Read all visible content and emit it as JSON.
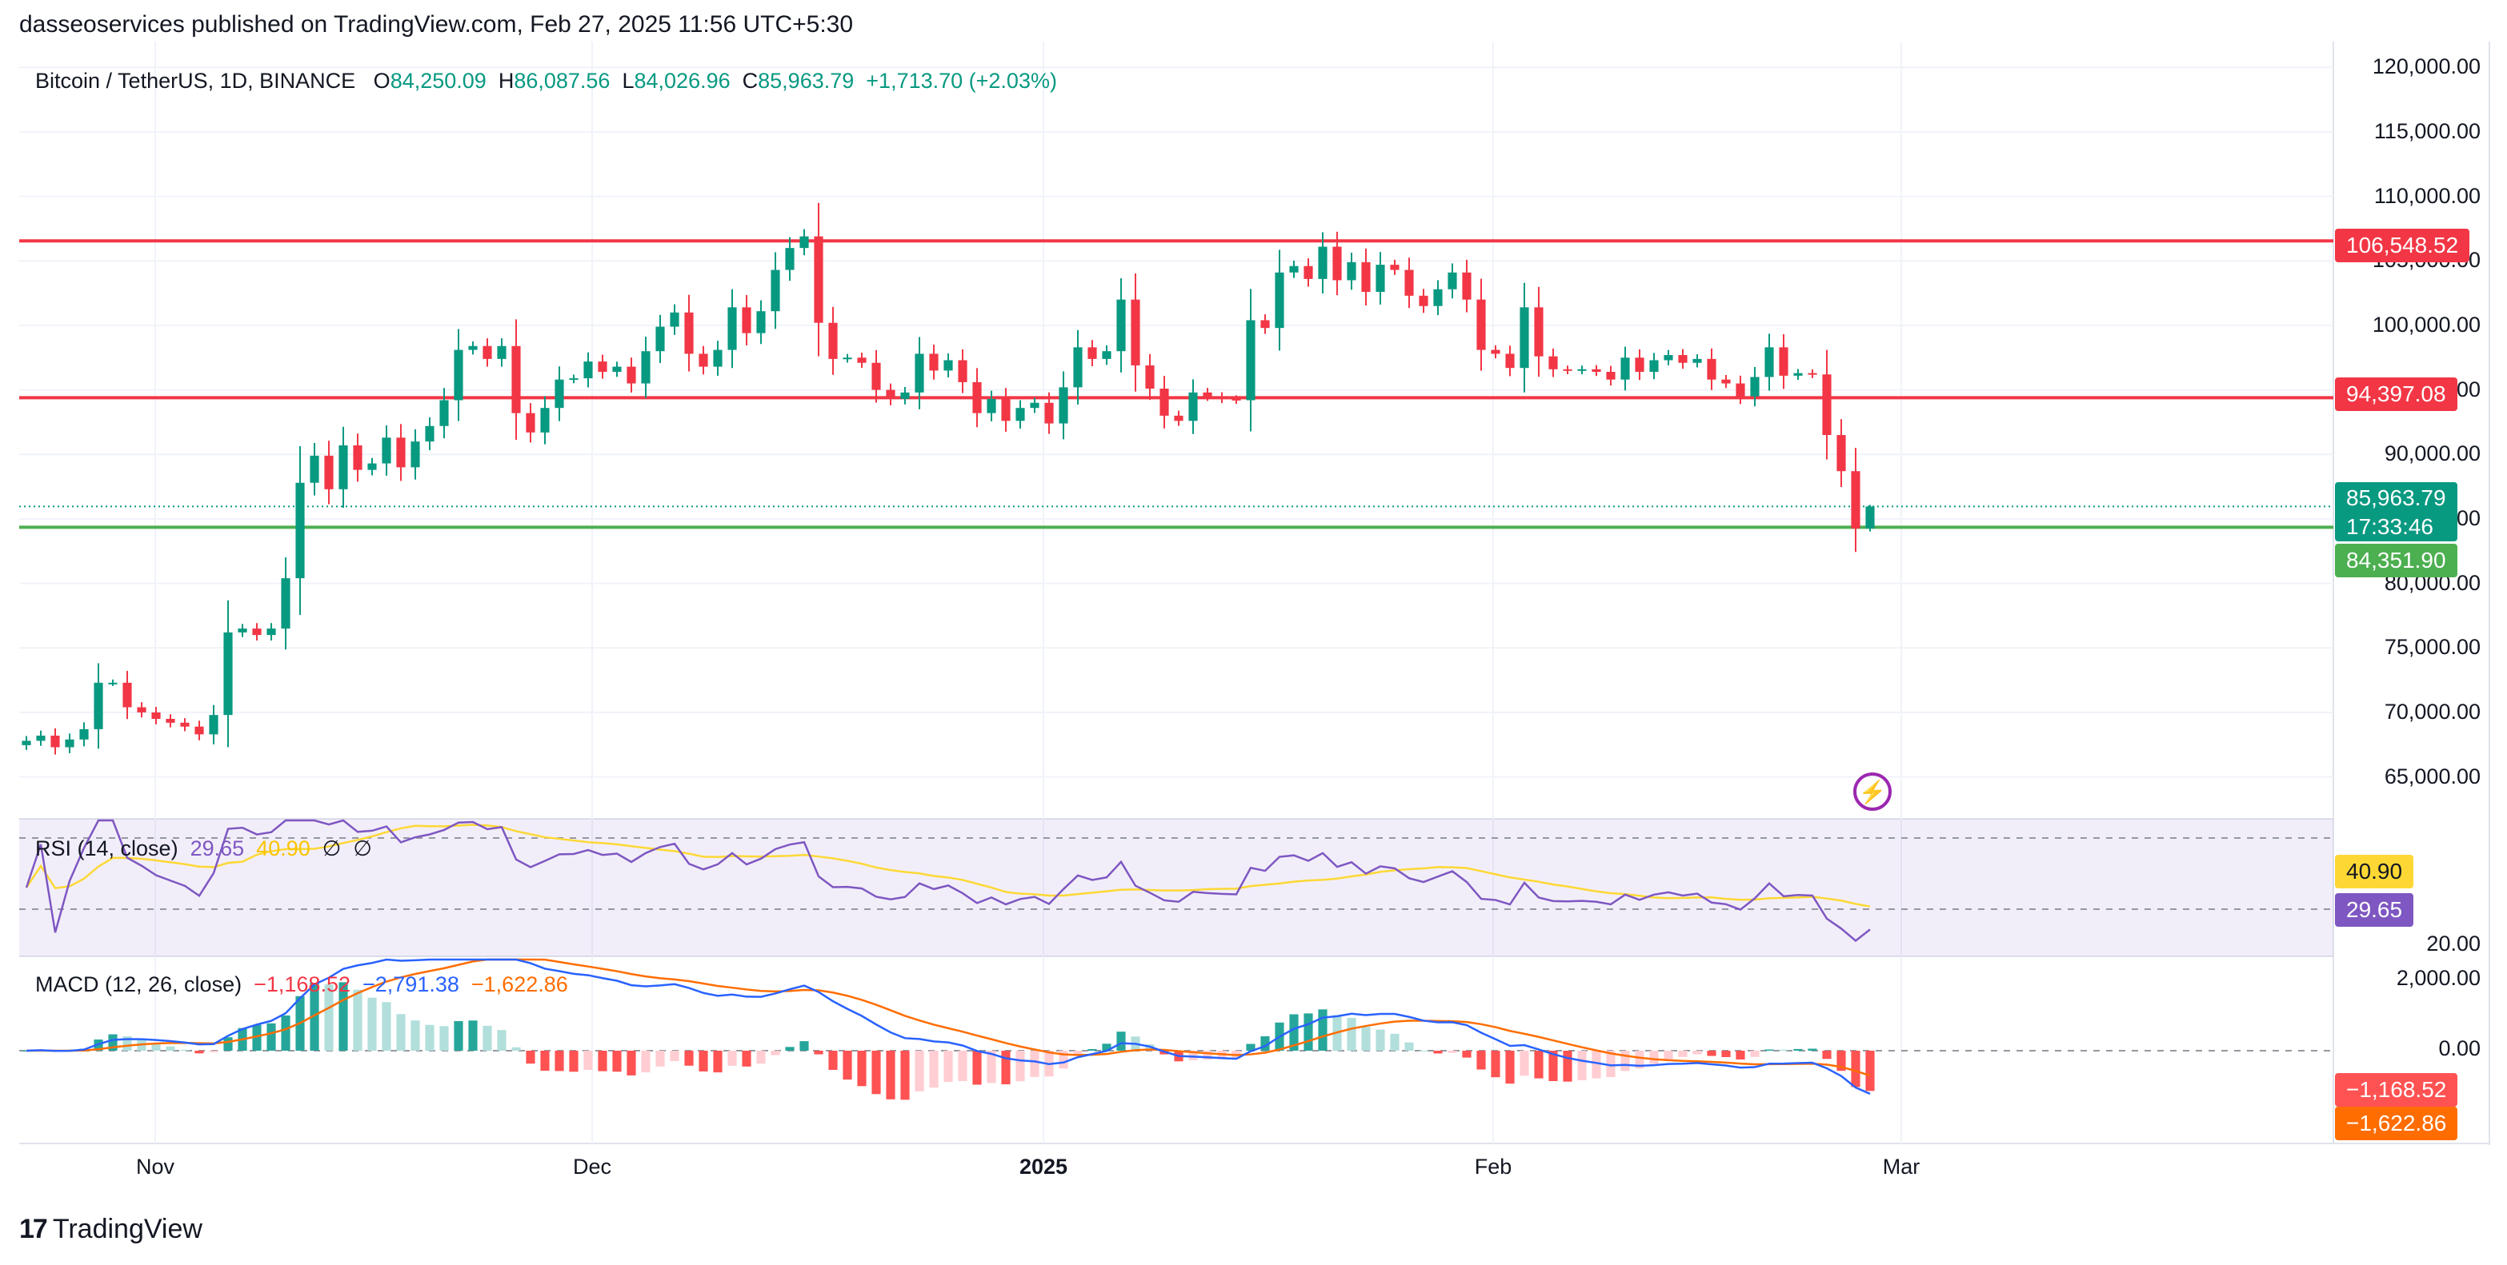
{
  "header": {
    "publisher_line": "dasseoservices published on TradingView.com, Feb 27, 2025 11:56 UTC+5:30"
  },
  "legend": {
    "symbol": "Bitcoin / TetherUS, 1D, BINANCE",
    "o_label": "O",
    "o": "84,250.09",
    "h_label": "H",
    "h": "86,087.56",
    "l_label": "L",
    "l": "84,026.96",
    "c_label": "C",
    "c": "85,963.79",
    "change": "+1,713.70 (+2.03%)"
  },
  "rsi_legend": {
    "name": "RSI (14, close)",
    "rsi": "29.65",
    "ma": "40.90",
    "extra1": "∅",
    "extra2": "∅"
  },
  "macd_legend": {
    "name": "MACD (12, 26, close)",
    "hist": "−1,168.52",
    "macd": "−2,791.38",
    "signal": "−1,622.86"
  },
  "price_axis": [
    "120,000.00",
    "115,000.00",
    "110,000.00",
    "105,000.00",
    "100,000.00",
    "95,000.00",
    "90,000.00",
    "85,000.00",
    "80,000.00",
    "75,000.00",
    "70,000.00",
    "65,000.00"
  ],
  "rsi_axis": [
    "20.00"
  ],
  "macd_axis": [
    "2,000.00",
    "0.00"
  ],
  "badges": {
    "upper_resistance": "106,548.52",
    "lower_resistance": "94,397.08",
    "last_price": "85,963.79",
    "countdown": "17:33:46",
    "support": "84,351.90",
    "rsi_ma": "40.90",
    "rsi": "29.65",
    "macd_hist": "−1,168.52",
    "macd_signal": "−1,622.86"
  },
  "x_labels": [
    "Nov",
    "Dec",
    "2025",
    "Feb",
    "Mar"
  ],
  "footer": {
    "brand": "TradingView"
  },
  "colors": {
    "up": "#089981",
    "down": "#f23645",
    "resistance": "#f23645",
    "support": "#4caf50",
    "rsi": "#7e57c2",
    "rsi_ma": "#fdd835",
    "macd": "#2962ff",
    "signal": "#ff6d00"
  },
  "chart_data": {
    "type": "candlestick",
    "title": "Bitcoin / TetherUS, 1D, BINANCE",
    "ylim": [
      62000,
      122000
    ],
    "horizontal_levels": [
      {
        "name": "resistance",
        "value": 106548.52
      },
      {
        "name": "resistance",
        "value": 94397.08
      },
      {
        "name": "support",
        "value": 84351.9
      }
    ],
    "last_price": 85963.79,
    "closes": [
      67800,
      68200,
      67300,
      67900,
      68700,
      72300,
      72300,
      70400,
      70000,
      69500,
      69200,
      68900,
      68300,
      69800,
      76200,
      76500,
      76000,
      76500,
      80400,
      87800,
      89900,
      87300,
      90700,
      88800,
      89300,
      91300,
      89000,
      91000,
      92200,
      94200,
      98100,
      98400,
      97400,
      98400,
      93200,
      91700,
      93600,
      95800,
      95900,
      97200,
      96400,
      96800,
      95500,
      98000,
      99900,
      101000,
      97800,
      96800,
      98100,
      101400,
      99400,
      101100,
      104300,
      106000,
      106900,
      100200,
      97400,
      97500,
      97100,
      95000,
      94300,
      94800,
      97800,
      96500,
      97300,
      95600,
      93200,
      94300,
      92600,
      93600,
      94000,
      92400,
      95200,
      98300,
      97400,
      98000,
      102000,
      96900,
      95100,
      93000,
      92600,
      94800,
      94500,
      94300,
      94200,
      100400,
      99800,
      104100,
      104600,
      103600,
      106100,
      103500,
      104900,
      102600,
      104700,
      104300,
      102300,
      101500,
      102800,
      104100,
      102000,
      98100,
      97800,
      96700,
      101400,
      97600,
      96600,
      96500,
      96600,
      96400,
      95800,
      97500,
      96400,
      97300,
      97700,
      97100,
      97400,
      95800,
      95500,
      94500,
      96000,
      98300,
      96100,
      96300,
      96200,
      91500,
      88700,
      84250,
      85963
    ],
    "ohlc_last": {
      "o": 84250.09,
      "h": 86087.56,
      "l": 84026.96,
      "c": 85963.79
    },
    "rsi": {
      "name": "RSI (14, close)",
      "last": 29.65,
      "ma_last": 40.9,
      "ylim": [
        20,
        80
      ]
    },
    "macd": {
      "name": "MACD (12, 26, close)",
      "hist_last": -1168.52,
      "macd_last": -2791.38,
      "signal_last": -1622.86
    },
    "x_labels": [
      "Nov",
      "Dec",
      "2025",
      "Feb",
      "Mar"
    ]
  }
}
